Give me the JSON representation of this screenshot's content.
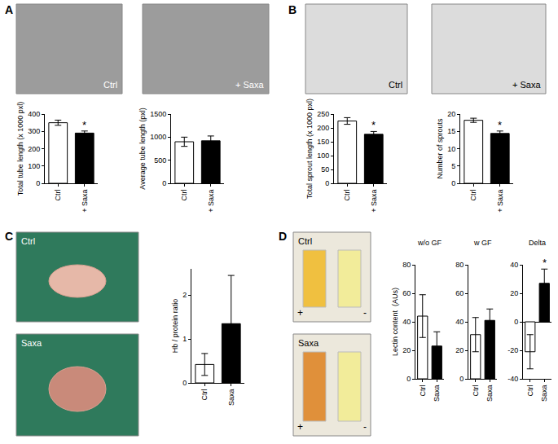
{
  "chart_data": [
    {
      "type": "bar",
      "ylabel": "Total tube length (x 1000 pxl)",
      "categories": [
        "Ctrl",
        "+ Saxa"
      ],
      "values": [
        350,
        290
      ],
      "errors": [
        15,
        12
      ],
      "significance": [
        null,
        "*"
      ],
      "colors": [
        "#ffffff",
        "#000000"
      ],
      "ylim": [
        0,
        400
      ],
      "yticks": [
        0,
        100,
        200,
        300,
        400
      ],
      "grid": false
    },
    {
      "type": "bar",
      "ylabel": "Average tube length (pxl)",
      "categories": [
        "Ctrl",
        "+ Saxa"
      ],
      "values": [
        900,
        920
      ],
      "errors": [
        100,
        105
      ],
      "significance": [
        null,
        null
      ],
      "colors": [
        "#ffffff",
        "#000000"
      ],
      "ylim": [
        0,
        1500
      ],
      "yticks": [
        0,
        500,
        1000,
        1500
      ],
      "grid": false
    },
    {
      "type": "bar",
      "ylabel": "Total sprout length (x 1000 pxl)",
      "categories": [
        "Ctrl",
        "+ Saxa"
      ],
      "values": [
        225,
        177
      ],
      "errors": [
        12,
        10
      ],
      "significance": [
        null,
        "*"
      ],
      "colors": [
        "#ffffff",
        "#000000"
      ],
      "ylim": [
        0,
        250
      ],
      "yticks": [
        0,
        50,
        100,
        150,
        200,
        250
      ],
      "grid": false
    },
    {
      "type": "bar",
      "ylabel": "Number of sprouts",
      "categories": [
        "Ctrl",
        "+ Saxa"
      ],
      "values": [
        18.2,
        14.4
      ],
      "errors": [
        0.6,
        0.7
      ],
      "significance": [
        null,
        "*"
      ],
      "colors": [
        "#ffffff",
        "#000000"
      ],
      "ylim": [
        0,
        20
      ],
      "yticks": [
        0,
        5,
        10,
        15,
        20
      ],
      "grid": false
    },
    {
      "type": "bar",
      "ylabel": "Hb / protein ratio",
      "categories": [
        "Ctrl",
        "Saxa"
      ],
      "values": [
        0.42,
        1.35
      ],
      "errors": [
        0.25,
        1.1
      ],
      "significance": [
        null,
        null
      ],
      "colors": [
        "#ffffff",
        "#000000"
      ],
      "ylim": [
        0,
        2.6
      ],
      "yticks": [
        0,
        1,
        2
      ],
      "grid": false
    },
    {
      "type": "bar",
      "title": "w/o GF",
      "ylabel": "Lectin content  (AUs)",
      "categories": [
        "Ctrl",
        "Saxa"
      ],
      "values": [
        44,
        23
      ],
      "errors": [
        15,
        10
      ],
      "significance": [
        null,
        null
      ],
      "colors": [
        "#ffffff",
        "#000000"
      ],
      "ylim": [
        0,
        80
      ],
      "yticks": [
        0,
        20,
        40,
        60,
        80
      ],
      "grid": false
    },
    {
      "type": "bar",
      "title": "w GF",
      "categories": [
        "Ctrl",
        "Saxa"
      ],
      "values": [
        31,
        41
      ],
      "errors": [
        12,
        8
      ],
      "significance": [
        null,
        null
      ],
      "colors": [
        "#ffffff",
        "#000000"
      ],
      "ylim": [
        0,
        80
      ],
      "yticks": [
        0,
        20,
        40,
        60,
        80
      ],
      "grid": false
    },
    {
      "type": "bar",
      "title": "Delta",
      "categories": [
        "Ctrl",
        "Saxa"
      ],
      "values": [
        -21,
        27
      ],
      "errors": [
        12,
        10
      ],
      "significance": [
        null,
        "*"
      ],
      "colors": [
        "#ffffff",
        "#000000"
      ],
      "ylim": [
        -40,
        40
      ],
      "yticks": [
        -40,
        -20,
        0,
        20,
        40
      ],
      "grid": false
    }
  ],
  "figure": {
    "panels": [
      {
        "label": "A",
        "photos": [
          {
            "label": "Ctrl"
          },
          {
            "label": "+ Saxa"
          }
        ]
      },
      {
        "label": "B",
        "photos": [
          {
            "label": "Ctrl"
          },
          {
            "label": "+ Saxa"
          }
        ]
      },
      {
        "label": "C",
        "photos": [
          {
            "label": "Ctrl"
          },
          {
            "label": "Saxa"
          }
        ]
      },
      {
        "label": "D",
        "photos": [
          {
            "label": "Ctrl",
            "marks": [
              "+",
              "-"
            ]
          },
          {
            "label": "Saxa",
            "marks": [
              "+",
              "-"
            ]
          }
        ]
      }
    ]
  }
}
